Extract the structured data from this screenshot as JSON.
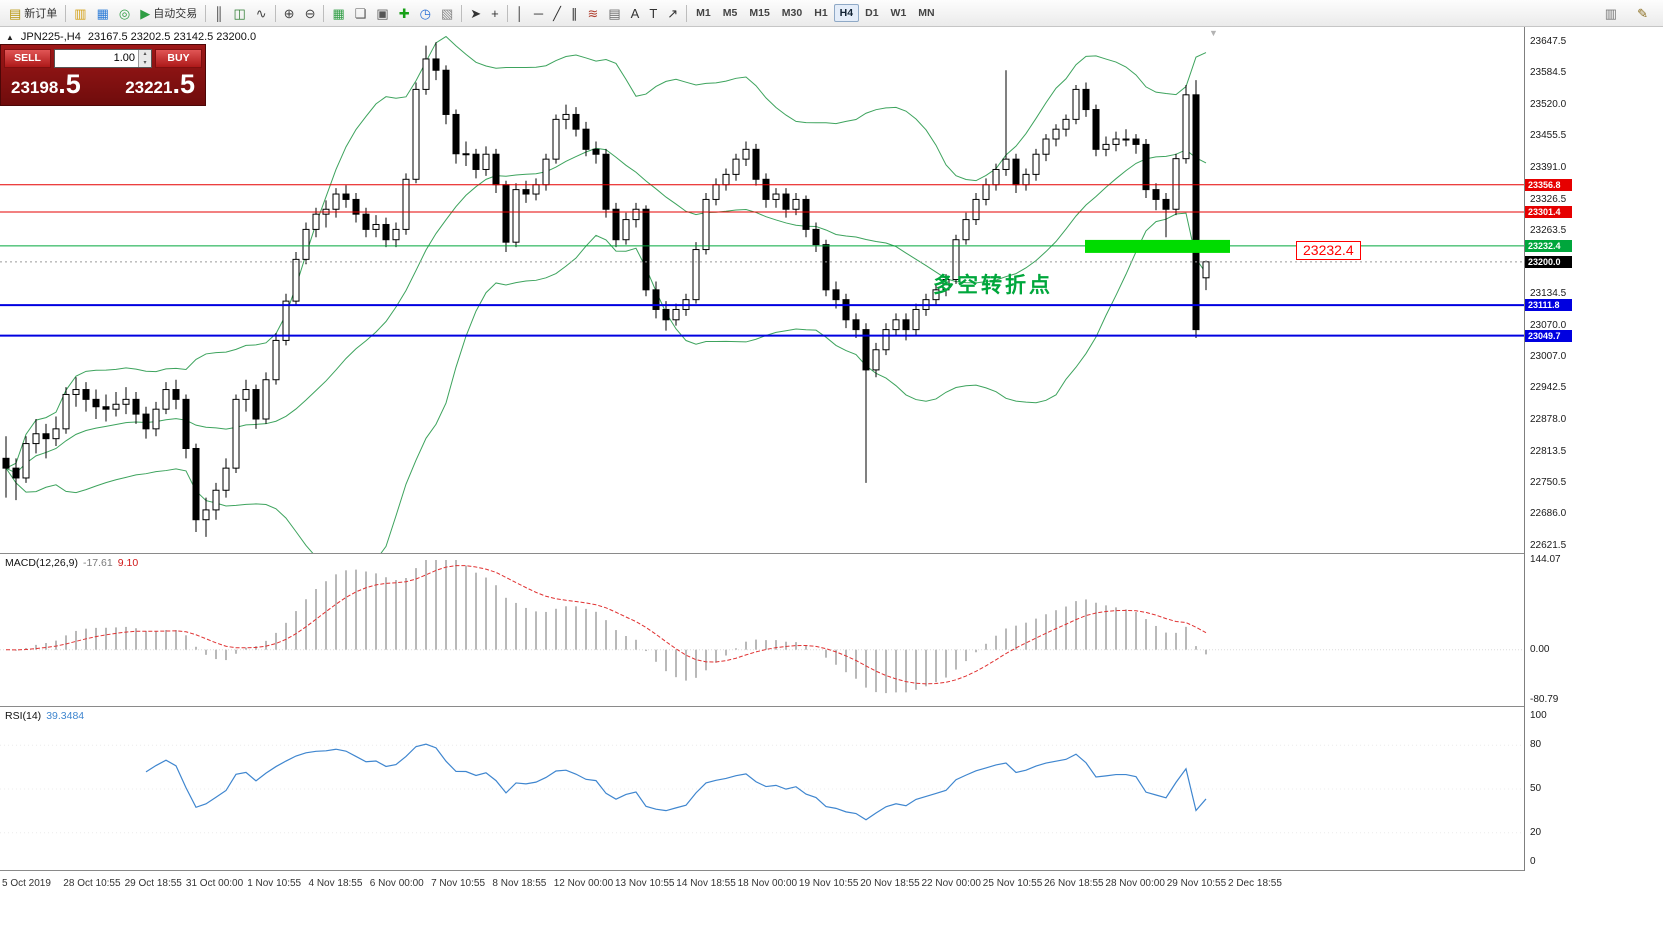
{
  "toolbar": {
    "items": [
      {
        "name": "new-order-button",
        "glyph": "▤",
        "label": "新订单",
        "color": "#b7950b"
      },
      {
        "type": "sep"
      },
      {
        "name": "market-watch-icon",
        "glyph": "▥",
        "color": "#d4a017"
      },
      {
        "name": "data-window-icon",
        "glyph": "▦",
        "color": "#2b7bd7"
      },
      {
        "name": "navigator-icon",
        "glyph": "◎",
        "color": "#2f9e44"
      },
      {
        "name": "autotrading-button",
        "glyph": "▶",
        "label": "自动交易",
        "color": "#2f9e44"
      },
      {
        "type": "sep"
      },
      {
        "name": "bar-chart-icon",
        "glyph": "║",
        "color": "#444444"
      },
      {
        "name": "candlestick-chart-icon",
        "glyph": "◫",
        "color": "#2f7d32"
      },
      {
        "name": "line-chart-icon",
        "glyph": "∿",
        "color": "#444444"
      },
      {
        "type": "sep"
      },
      {
        "name": "zoom-in-icon",
        "glyph": "⊕",
        "color": "#444444"
      },
      {
        "name": "zoom-out-icon",
        "glyph": "⊖",
        "color": "#444444"
      },
      {
        "type": "sep"
      },
      {
        "name": "tile-windows-icon",
        "glyph": "▦",
        "color": "#2f9e44"
      },
      {
        "name": "cascade-windows-icon",
        "glyph": "❏",
        "color": "#555555"
      },
      {
        "name": "arrange-windows-icon",
        "glyph": "▣",
        "color": "#555555"
      },
      {
        "name": "add-indicator-button",
        "glyph": "✚",
        "color": "#18a018"
      },
      {
        "name": "periods-icon",
        "glyph": "◷",
        "color": "#2b6fd4"
      },
      {
        "name": "templates-icon",
        "glyph": "▧",
        "color": "#888888"
      },
      {
        "type": "sep"
      },
      {
        "name": "cursor-icon",
        "glyph": "➤",
        "color": "#333333"
      },
      {
        "name": "crosshair-icon",
        "glyph": "+",
        "color": "#333333"
      },
      {
        "type": "sep"
      },
      {
        "name": "vline-icon",
        "glyph": "│",
        "color": "#333333"
      },
      {
        "name": "hline-icon",
        "glyph": "─",
        "color": "#333333"
      },
      {
        "name": "trendline-icon",
        "glyph": "╱",
        "color": "#333333"
      },
      {
        "name": "channel-icon",
        "glyph": "∥",
        "color": "#333333"
      },
      {
        "name": "fibonacci-icon",
        "glyph": "≋",
        "color": "#b04030"
      },
      {
        "name": "grid-icon",
        "glyph": "▤",
        "color": "#666666"
      },
      {
        "name": "text-icon",
        "glyph": "A",
        "color": "#333333"
      },
      {
        "name": "label-icon",
        "glyph": "T",
        "color": "#333333"
      },
      {
        "name": "arrows-icon",
        "glyph": "↗",
        "color": "#333333"
      },
      {
        "type": "sep"
      }
    ],
    "timeframes": [
      "M1",
      "M5",
      "M15",
      "M30",
      "H1",
      "H4",
      "D1",
      "W1",
      "MN"
    ],
    "active_timeframe": "H4",
    "right_items": [
      {
        "name": "new-chart-icon",
        "glyph": "▥",
        "color": "#777777"
      },
      {
        "name": "edit-icon",
        "glyph": "✎",
        "color": "#8a6d1f"
      }
    ]
  },
  "symbol_bar": {
    "collapse_glyph": "▲",
    "symbol": "JPN225-,H4",
    "ohlc": "23167.5 23202.5 23142.5 23200.0"
  },
  "trade_panel": {
    "sell_label": "SELL",
    "buy_label": "BUY",
    "volume": "1.00",
    "sell_price_main": "23198",
    "sell_price_frac": ".5",
    "buy_price_main": "23221",
    "buy_price_frac": ".5"
  },
  "annotations": {
    "turning_point": "多空转折点",
    "price_callout": "23232.4"
  },
  "price_axis": {
    "max": 23647.5,
    "min": 22621.5,
    "ticks": [
      "23647.5",
      "23584.5",
      "23520.0",
      "23455.5",
      "23391.0",
      "23326.5",
      "23263.5",
      "23134.5",
      "23070.0",
      "23007.0",
      "22942.5",
      "22878.0",
      "22813.5",
      "22750.5",
      "22686.0",
      "22621.5"
    ]
  },
  "hlines": [
    {
      "price": 23356.8,
      "label": "23356.8",
      "color": "#e60000",
      "tag_bg": "#e60000",
      "width": 1
    },
    {
      "price": 23301.4,
      "label": "23301.4",
      "color": "#e60000",
      "tag_bg": "#e60000",
      "width": 1
    },
    {
      "price": 23232.4,
      "label": "23232.4",
      "color": "#00a63c",
      "tag_bg": "#00a63c",
      "width": 1
    },
    {
      "price": 23200.0,
      "label": "23200.0",
      "color": "#9a9a9a",
      "tag_bg": "#000000",
      "width": 1,
      "dash": true
    },
    {
      "price": 23111.8,
      "label": "23111.8",
      "color": "#0000e0",
      "tag_bg": "#0000e0",
      "width": 2
    },
    {
      "price": 23049.7,
      "label": "23049.7",
      "color": "#0000e0",
      "tag_bg": "#0000e0",
      "width": 2
    }
  ],
  "highlight_box": {
    "price": 23232.4,
    "x_from": 1085,
    "x_to": 1230,
    "color": "#00dc00"
  },
  "macd": {
    "label": "MACD(12,26,9)",
    "value_main": "-17.61",
    "value_signal": "9.10",
    "axis_max": 144.07,
    "axis_min": -80.79,
    "axis_ticks": [
      "144.07",
      "0.00",
      "-80.79"
    ]
  },
  "rsi": {
    "label": "RSI(14)",
    "value": "39.3484",
    "axis_ticks": [
      "100",
      "80",
      "50",
      "20",
      "0"
    ],
    "levels": [
      80,
      50,
      20
    ]
  },
  "time_axis": [
    "5 Oct 2019",
    "28 Oct 10:55",
    "29 Oct 18:55",
    "31 Oct 00:00",
    "1 Nov 10:55",
    "4 Nov 18:55",
    "6 Nov 00:00",
    "7 Nov 10:55",
    "8 Nov 18:55",
    "12 Nov 00:00",
    "13 Nov 10:55",
    "14 Nov 18:55",
    "18 Nov 00:00",
    "19 Nov 10:55",
    "20 Nov 18:55",
    "22 Nov 00:00",
    "25 Nov 10:55",
    "26 Nov 18:55",
    "28 Nov 00:00",
    "29 Nov 10:55",
    "2 Dec 18:55"
  ],
  "chart_data": {
    "type": "candlestick",
    "title": "JPN225-,H4",
    "ylim": [
      22621.5,
      23647.5
    ],
    "indicators": {
      "bollinger": {
        "period": 20,
        "deviation": 2,
        "color": "#3da35d"
      },
      "macd": {
        "fast": 12,
        "slow": 26,
        "signal": 9
      },
      "rsi": {
        "period": 14
      }
    },
    "candles": [
      [
        22800,
        22845,
        22720,
        22780
      ],
      [
        22780,
        22800,
        22715,
        22760
      ],
      [
        22760,
        22845,
        22750,
        22830
      ],
      [
        22830,
        22880,
        22810,
        22850
      ],
      [
        22850,
        22870,
        22800,
        22840
      ],
      [
        22840,
        22885,
        22825,
        22860
      ],
      [
        22860,
        22945,
        22850,
        22930
      ],
      [
        22930,
        22965,
        22905,
        22940
      ],
      [
        22940,
        22955,
        22895,
        22920
      ],
      [
        22920,
        22940,
        22880,
        22905
      ],
      [
        22905,
        22930,
        22875,
        22900
      ],
      [
        22900,
        22935,
        22885,
        22910
      ],
      [
        22910,
        22945,
        22890,
        22920
      ],
      [
        22920,
        22935,
        22870,
        22890
      ],
      [
        22890,
        22905,
        22840,
        22860
      ],
      [
        22860,
        22915,
        22845,
        22900
      ],
      [
        22900,
        22955,
        22890,
        22940
      ],
      [
        22940,
        22960,
        22900,
        22920
      ],
      [
        22920,
        22930,
        22800,
        22820
      ],
      [
        22820,
        22830,
        22650,
        22675
      ],
      [
        22675,
        22720,
        22640,
        22695
      ],
      [
        22695,
        22750,
        22675,
        22735
      ],
      [
        22735,
        22800,
        22720,
        22780
      ],
      [
        22780,
        22930,
        22770,
        22920
      ],
      [
        22920,
        22960,
        22895,
        22940
      ],
      [
        22940,
        22950,
        22860,
        22880
      ],
      [
        22880,
        22975,
        22870,
        22960
      ],
      [
        22960,
        23055,
        22950,
        23040
      ],
      [
        23040,
        23135,
        23030,
        23120
      ],
      [
        23120,
        23220,
        23110,
        23205
      ],
      [
        23205,
        23280,
        23195,
        23266
      ],
      [
        23266,
        23310,
        23250,
        23297
      ],
      [
        23297,
        23325,
        23270,
        23307
      ],
      [
        23307,
        23350,
        23290,
        23338
      ],
      [
        23338,
        23356,
        23310,
        23327
      ],
      [
        23327,
        23340,
        23280,
        23297
      ],
      [
        23297,
        23310,
        23250,
        23266
      ],
      [
        23266,
        23295,
        23250,
        23276
      ],
      [
        23276,
        23290,
        23230,
        23245
      ],
      [
        23245,
        23280,
        23230,
        23266
      ],
      [
        23266,
        23380,
        23255,
        23368
      ],
      [
        23368,
        23565,
        23360,
        23551
      ],
      [
        23551,
        23640,
        23540,
        23613
      ],
      [
        23613,
        23647,
        23570,
        23590
      ],
      [
        23590,
        23600,
        23480,
        23500
      ],
      [
        23500,
        23510,
        23400,
        23420
      ],
      [
        23420,
        23445,
        23395,
        23419
      ],
      [
        23419,
        23430,
        23370,
        23388
      ],
      [
        23388,
        23435,
        23375,
        23419
      ],
      [
        23419,
        23430,
        23340,
        23357
      ],
      [
        23357,
        23365,
        23220,
        23240
      ],
      [
        23240,
        23360,
        23230,
        23347
      ],
      [
        23347,
        23365,
        23320,
        23338
      ],
      [
        23338,
        23370,
        23325,
        23357
      ],
      [
        23357,
        23420,
        23345,
        23409
      ],
      [
        23409,
        23500,
        23400,
        23490
      ],
      [
        23490,
        23520,
        23470,
        23500
      ],
      [
        23500,
        23515,
        23455,
        23470
      ],
      [
        23470,
        23485,
        23415,
        23429
      ],
      [
        23429,
        23445,
        23400,
        23419
      ],
      [
        23419,
        23430,
        23290,
        23307
      ],
      [
        23307,
        23320,
        23230,
        23245
      ],
      [
        23245,
        23300,
        23235,
        23286
      ],
      [
        23286,
        23320,
        23270,
        23307
      ],
      [
        23307,
        23315,
        23130,
        23143
      ],
      [
        23143,
        23160,
        23085,
        23103
      ],
      [
        23103,
        23120,
        23060,
        23082
      ],
      [
        23082,
        23115,
        23070,
        23103
      ],
      [
        23103,
        23135,
        23090,
        23123
      ],
      [
        23123,
        23240,
        23115,
        23225
      ],
      [
        23225,
        23340,
        23215,
        23327
      ],
      [
        23327,
        23370,
        23315,
        23357
      ],
      [
        23357,
        23390,
        23345,
        23378
      ],
      [
        23378,
        23420,
        23365,
        23409
      ],
      [
        23409,
        23445,
        23395,
        23429
      ],
      [
        23429,
        23440,
        23355,
        23368
      ],
      [
        23368,
        23380,
        23310,
        23327
      ],
      [
        23327,
        23350,
        23310,
        23338
      ],
      [
        23338,
        23350,
        23290,
        23307
      ],
      [
        23307,
        23340,
        23295,
        23327
      ],
      [
        23327,
        23335,
        23250,
        23266
      ],
      [
        23266,
        23280,
        23220,
        23235
      ],
      [
        23235,
        23245,
        23130,
        23143
      ],
      [
        23143,
        23160,
        23105,
        23123
      ],
      [
        23123,
        23135,
        23065,
        23082
      ],
      [
        23082,
        23095,
        23045,
        23062
      ],
      [
        23062,
        23075,
        22750,
        22980
      ],
      [
        22980,
        23035,
        22965,
        23021
      ],
      [
        23021,
        23075,
        23010,
        23062
      ],
      [
        23062,
        23095,
        23050,
        23082
      ],
      [
        23082,
        23095,
        23040,
        23062
      ],
      [
        23062,
        23115,
        23050,
        23103
      ],
      [
        23103,
        23135,
        23090,
        23123
      ],
      [
        23123,
        23155,
        23110,
        23143
      ],
      [
        23143,
        23175,
        23130,
        23164
      ],
      [
        23164,
        23255,
        23155,
        23245
      ],
      [
        23245,
        23300,
        23235,
        23286
      ],
      [
        23286,
        23340,
        23275,
        23327
      ],
      [
        23327,
        23370,
        23315,
        23357
      ],
      [
        23357,
        23400,
        23345,
        23388
      ],
      [
        23388,
        23590,
        23375,
        23409
      ],
      [
        23409,
        23420,
        23340,
        23357
      ],
      [
        23357,
        23390,
        23345,
        23378
      ],
      [
        23378,
        23430,
        23365,
        23419
      ],
      [
        23419,
        23460,
        23405,
        23450
      ],
      [
        23450,
        23480,
        23435,
        23470
      ],
      [
        23470,
        23500,
        23455,
        23490
      ],
      [
        23490,
        23560,
        23480,
        23551
      ],
      [
        23551,
        23565,
        23495,
        23510
      ],
      [
        23510,
        23520,
        23415,
        23429
      ],
      [
        23429,
        23455,
        23415,
        23439
      ],
      [
        23439,
        23465,
        23425,
        23450
      ],
      [
        23450,
        23470,
        23435,
        23450
      ],
      [
        23450,
        23460,
        23420,
        23439
      ],
      [
        23439,
        23450,
        23330,
        23347
      ],
      [
        23347,
        23360,
        23305,
        23327
      ],
      [
        23327,
        23340,
        23250,
        23307
      ],
      [
        23307,
        23420,
        23295,
        23410
      ],
      [
        23410,
        23560,
        23400,
        23540
      ],
      [
        23540,
        23570,
        23045,
        23062
      ],
      [
        23167.5,
        23202.5,
        23142.5,
        23200
      ]
    ]
  }
}
